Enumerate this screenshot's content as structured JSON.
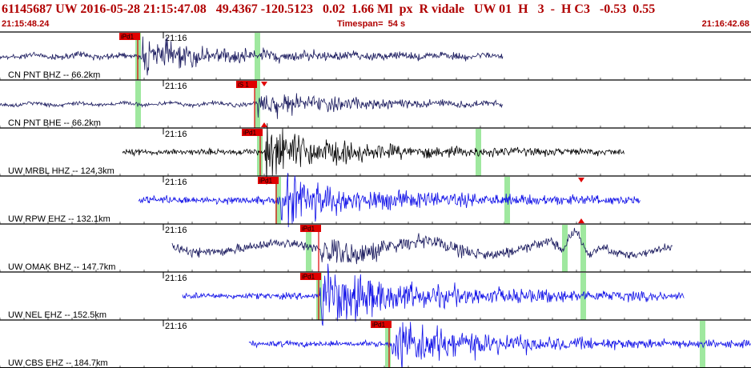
{
  "header": {
    "event_line": "61145687 UW 2016-05-28 21:15:47.08   49.4367 -120.5123   0.02  1.66 Ml  px  R vidale   UW 01  H   3  -  H C3   -0.53  0.55",
    "start_time": "21:15:48.24",
    "timespan": "Timespan=  54 s",
    "end_time": "21:16:42.68"
  },
  "colors": {
    "header_text": "#b00000",
    "trace_dark": "#1a1a5e",
    "trace_black": "#000000",
    "trace_blue": "#1010e8",
    "pick_red": "#e00000",
    "marker_green": "#9fe89f"
  },
  "panels": [
    {
      "station_label": "CN PNT BHZ -- 66.2km",
      "minute_label": "21:16",
      "pick_label": "iPd1",
      "color_key": "trace_dark",
      "extra_pick": false
    },
    {
      "station_label": "CN PNT BHE -- 66.2km",
      "minute_label": "21:16",
      "pick_label": "iS 1",
      "color_key": "trace_dark",
      "extra_pick": true
    },
    {
      "station_label": "UW MRBL HHZ -- 124.3km",
      "minute_label": "21:16",
      "pick_label": "iPd1",
      "color_key": "trace_black",
      "extra_pick": false
    },
    {
      "station_label": "UW RPW EHZ -- 132.1km",
      "minute_label": "21:16",
      "pick_label": "iPd1",
      "color_key": "trace_blue",
      "extra_pick": true
    },
    {
      "station_label": "UW OMAK BHZ -- 147.7km",
      "minute_label": "21:16",
      "pick_label": "iPd1",
      "color_key": "trace_dark",
      "extra_pick": false
    },
    {
      "station_label": "UW NEL EHZ -- 152.5km",
      "minute_label": "21:16",
      "pick_label": "iPd1",
      "color_key": "trace_blue",
      "extra_pick": false
    },
    {
      "station_label": "UW CBS EHZ -- 184.7km",
      "minute_label": "21:16",
      "pick_label": "iPd1",
      "color_key": "trace_blue",
      "extra_pick": false
    }
  ]
}
